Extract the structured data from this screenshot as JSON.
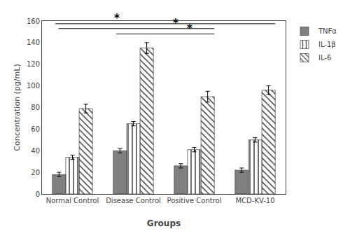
{
  "chart_data": {
    "type": "bar",
    "categories": [
      "Normal Control",
      "Disease Control",
      "Positive Control",
      "MCD-KV-10"
    ],
    "series": [
      {
        "name": "TNFα",
        "color": "#808080",
        "values": [
          18,
          40,
          26,
          22
        ],
        "errors": [
          2,
          2,
          2,
          2
        ]
      },
      {
        "name": "IL-1β",
        "color": "#ffffff",
        "values": [
          34,
          65,
          41,
          50
        ],
        "errors": [
          2,
          2,
          2,
          2
        ]
      },
      {
        "name": "IL-6",
        "color": "#c8c8c8",
        "values": [
          79,
          135,
          90,
          96
        ],
        "errors": [
          4,
          5,
          5,
          4
        ]
      }
    ],
    "xlabel": "Groups",
    "ylabel": "Concentration (pg/mL)",
    "ylim": [
      0,
      160
    ],
    "yticks": [
      0,
      20,
      40,
      60,
      80,
      100,
      120,
      140,
      160
    ],
    "grid": false,
    "legend": "upper right",
    "annotations": [
      {
        "text": "*",
        "y": 157.5,
        "from": "Normal Control",
        "to": "MCD-KV-10"
      },
      {
        "text": "*",
        "y": 153,
        "from": "Normal Control",
        "to": "Positive Control"
      },
      {
        "text": "*",
        "y": 148,
        "from": "Disease Control",
        "to": "Positive Control"
      }
    ]
  }
}
